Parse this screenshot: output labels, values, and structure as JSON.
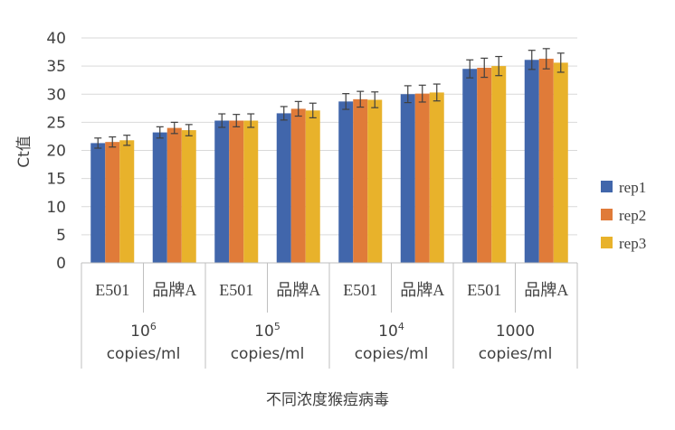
{
  "chart_data": {
    "type": "bar",
    "title": "",
    "ylabel": "Ct值",
    "xlabel": "不同浓度猴痘病毒",
    "ylim": [
      0,
      40
    ],
    "yticks": [
      0,
      5,
      10,
      15,
      20,
      25,
      30,
      35,
      40
    ],
    "grid": "horizontal",
    "legend_position": "right",
    "categories": [
      "E501",
      "品牌A",
      "E501",
      "品牌A",
      "E501",
      "品牌A",
      "E501",
      "品牌A"
    ],
    "groups": [
      {
        "base": "10",
        "exp": "6",
        "unit": "copies/ml"
      },
      {
        "base": "10",
        "exp": "5",
        "unit": "copies/ml"
      },
      {
        "base": "10",
        "exp": "4",
        "unit": "copies/ml"
      },
      {
        "base": "1000",
        "exp": "",
        "unit": "copies/ml"
      }
    ],
    "series": [
      {
        "name": "rep1",
        "color": "#4166ab",
        "values": [
          21.3,
          23.2,
          25.3,
          26.6,
          28.7,
          30.0,
          34.5,
          36.1
        ],
        "errors": [
          0.9,
          1.0,
          1.2,
          1.2,
          1.4,
          1.5,
          1.6,
          1.7
        ]
      },
      {
        "name": "rep2",
        "color": "#e07b39",
        "values": [
          21.5,
          24.0,
          25.3,
          27.4,
          29.1,
          30.1,
          34.7,
          36.3
        ],
        "errors": [
          0.9,
          1.0,
          1.1,
          1.3,
          1.4,
          1.5,
          1.7,
          1.8
        ]
      },
      {
        "name": "rep3",
        "color": "#e8b22b",
        "values": [
          21.8,
          23.6,
          25.3,
          27.1,
          29.0,
          30.3,
          35.0,
          35.6
        ],
        "errors": [
          0.9,
          1.0,
          1.2,
          1.3,
          1.4,
          1.5,
          1.7,
          1.7
        ]
      }
    ]
  }
}
